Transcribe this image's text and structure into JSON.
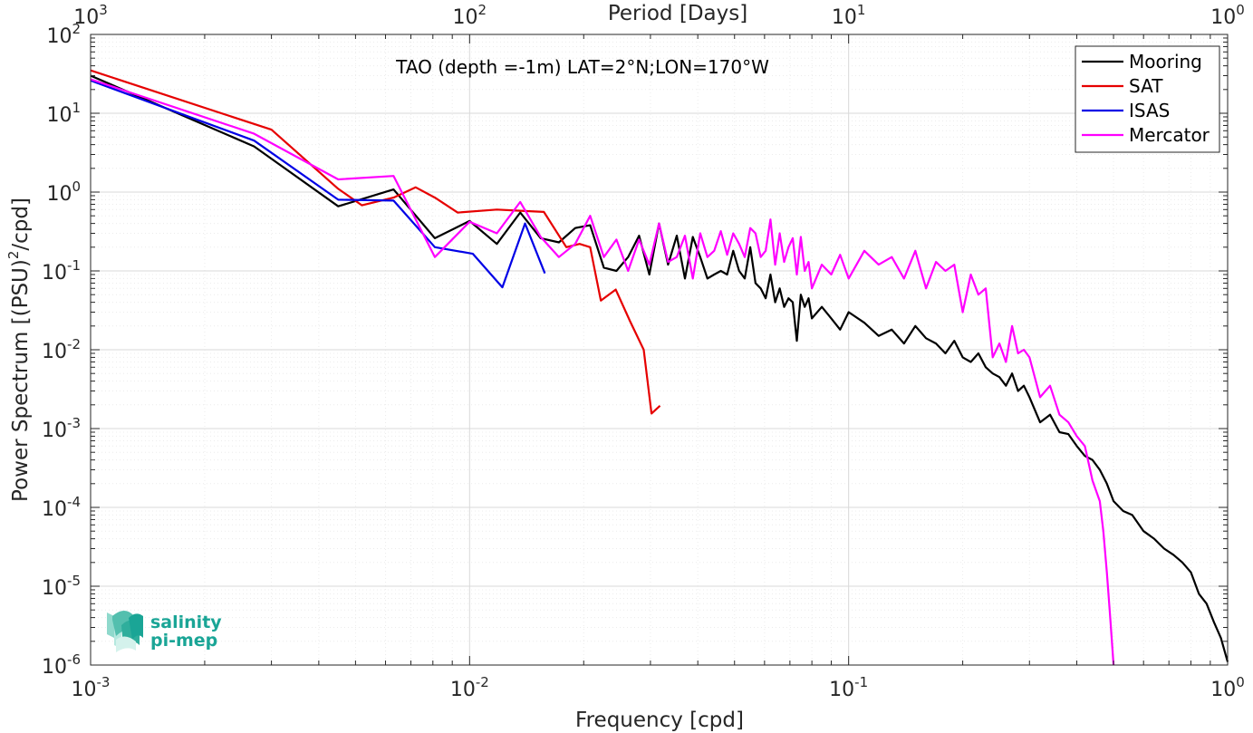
{
  "chart_data": {
    "type": "line",
    "title": "TAO (depth =-1m) LAT=2°N;LON=170°W",
    "xlabel": "Frequency [cpd]",
    "ylabel_parts": [
      "Power Spectrum [(PSU)",
      "2",
      "/cpd]"
    ],
    "top_xlabel": "Period [Days]",
    "x_scale": "log",
    "y_scale": "log",
    "xlim": [
      0.001,
      1
    ],
    "ylim": [
      1e-06,
      100
    ],
    "x_ticks": [
      {
        "value": 0.001,
        "base": "10",
        "exp": "-3"
      },
      {
        "value": 0.01,
        "base": "10",
        "exp": "-2"
      },
      {
        "value": 0.1,
        "base": "10",
        "exp": "-1"
      },
      {
        "value": 1,
        "base": "10",
        "exp": "0"
      }
    ],
    "top_ticks": [
      {
        "value": 0.001,
        "base": "10",
        "exp": "3"
      },
      {
        "value": 0.01,
        "base": "10",
        "exp": "2"
      },
      {
        "value": 0.1,
        "base": "10",
        "exp": "1"
      },
      {
        "value": 1,
        "base": "10",
        "exp": "0"
      }
    ],
    "y_ticks": [
      {
        "value": 100,
        "base": "10",
        "exp": "2"
      },
      {
        "value": 10,
        "base": "10",
        "exp": "1"
      },
      {
        "value": 1,
        "base": "10",
        "exp": "0"
      },
      {
        "value": 0.1,
        "base": "10",
        "exp": "-1"
      },
      {
        "value": 0.01,
        "base": "10",
        "exp": "-2"
      },
      {
        "value": 0.001,
        "base": "10",
        "exp": "-3"
      },
      {
        "value": 0.0001,
        "base": "10",
        "exp": "-4"
      },
      {
        "value": 1e-05,
        "base": "10",
        "exp": "-5"
      },
      {
        "value": 1e-06,
        "base": "10",
        "exp": "-6"
      }
    ],
    "grid": true,
    "minor_grid": true,
    "legend_position": "top-right",
    "series": [
      {
        "name": "Mooring",
        "color": "#000000",
        "x": [
          0.001,
          0.0027,
          0.0045,
          0.0063,
          0.0081,
          0.01,
          0.0118,
          0.0136,
          0.0154,
          0.0172,
          0.019,
          0.0208,
          0.0226,
          0.0244,
          0.0262,
          0.028,
          0.0298,
          0.0316,
          0.0334,
          0.0352,
          0.037,
          0.0388,
          0.0406,
          0.0424,
          0.0442,
          0.046,
          0.0478,
          0.0496,
          0.0514,
          0.0532,
          0.055,
          0.0568,
          0.0586,
          0.0604,
          0.0622,
          0.064,
          0.0658,
          0.0676,
          0.0694,
          0.0712,
          0.073,
          0.0748,
          0.0766,
          0.0784,
          0.08,
          0.085,
          0.09,
          0.095,
          0.1,
          0.11,
          0.12,
          0.13,
          0.14,
          0.15,
          0.16,
          0.17,
          0.18,
          0.19,
          0.2,
          0.21,
          0.22,
          0.23,
          0.24,
          0.25,
          0.26,
          0.27,
          0.28,
          0.29,
          0.3,
          0.32,
          0.34,
          0.36,
          0.38,
          0.4,
          0.42,
          0.44,
          0.46,
          0.48,
          0.5,
          0.53,
          0.56,
          0.6,
          0.64,
          0.68,
          0.72,
          0.76,
          0.8,
          0.84,
          0.88,
          0.92,
          0.96,
          1.0
        ],
        "y": [
          30,
          3.8,
          0.66,
          1.08,
          0.26,
          0.43,
          0.22,
          0.55,
          0.26,
          0.23,
          0.35,
          0.38,
          0.11,
          0.1,
          0.15,
          0.28,
          0.09,
          0.4,
          0.12,
          0.28,
          0.08,
          0.27,
          0.15,
          0.08,
          0.09,
          0.1,
          0.09,
          0.18,
          0.1,
          0.08,
          0.2,
          0.07,
          0.06,
          0.045,
          0.09,
          0.04,
          0.06,
          0.035,
          0.045,
          0.04,
          0.013,
          0.05,
          0.035,
          0.045,
          0.025,
          0.035,
          0.025,
          0.018,
          0.03,
          0.022,
          0.015,
          0.018,
          0.012,
          0.02,
          0.014,
          0.012,
          0.009,
          0.013,
          0.008,
          0.007,
          0.009,
          0.006,
          0.005,
          0.0045,
          0.0035,
          0.005,
          0.003,
          0.0035,
          0.0025,
          0.0012,
          0.0015,
          0.0009,
          0.00085,
          0.0006,
          0.00045,
          0.0004,
          0.0003,
          0.0002,
          0.00012,
          9e-05,
          8e-05,
          5e-05,
          4e-05,
          3e-05,
          2.5e-05,
          2e-05,
          1.5e-05,
          8e-06,
          6e-06,
          3.5e-06,
          2.2e-06,
          1.1e-06
        ]
      },
      {
        "name": "SAT",
        "color": "#e60000",
        "x": [
          0.001,
          0.003,
          0.0045,
          0.0052,
          0.0063,
          0.0072,
          0.0081,
          0.0093,
          0.0118,
          0.0136,
          0.0157,
          0.018,
          0.0195,
          0.0208,
          0.0222,
          0.0243,
          0.0265,
          0.0288,
          0.0302,
          0.0318
        ],
        "y": [
          35,
          6.2,
          1.1,
          0.68,
          0.85,
          1.15,
          0.85,
          0.55,
          0.6,
          0.58,
          0.56,
          0.2,
          0.22,
          0.2,
          0.042,
          0.058,
          0.023,
          0.01,
          0.00155,
          0.00195
        ]
      },
      {
        "name": "ISAS",
        "color": "#0000e6",
        "x": [
          0.001,
          0.0027,
          0.0045,
          0.0063,
          0.0081,
          0.0102,
          0.0122,
          0.014,
          0.0158
        ],
        "y": [
          26,
          4.5,
          0.8,
          0.78,
          0.2,
          0.165,
          0.062,
          0.4,
          0.093
        ]
      },
      {
        "name": "Mercator",
        "color": "#ff00ff",
        "x": [
          0.001,
          0.0027,
          0.0045,
          0.0063,
          0.0081,
          0.01,
          0.0118,
          0.0136,
          0.0154,
          0.0172,
          0.019,
          0.0208,
          0.0226,
          0.0244,
          0.0262,
          0.028,
          0.0298,
          0.0316,
          0.0334,
          0.0352,
          0.037,
          0.0388,
          0.0406,
          0.0424,
          0.0442,
          0.046,
          0.0478,
          0.0496,
          0.0514,
          0.0532,
          0.055,
          0.0568,
          0.0586,
          0.0604,
          0.0622,
          0.064,
          0.0658,
          0.0676,
          0.0694,
          0.0712,
          0.073,
          0.0748,
          0.0766,
          0.0784,
          0.08,
          0.085,
          0.09,
          0.095,
          0.1,
          0.11,
          0.12,
          0.13,
          0.14,
          0.15,
          0.16,
          0.17,
          0.18,
          0.19,
          0.2,
          0.21,
          0.22,
          0.23,
          0.24,
          0.25,
          0.26,
          0.27,
          0.28,
          0.29,
          0.3,
          0.32,
          0.34,
          0.36,
          0.38,
          0.4,
          0.42,
          0.44,
          0.46,
          0.47,
          0.48,
          0.49,
          0.5
        ],
        "y": [
          27,
          5.5,
          1.45,
          1.6,
          0.15,
          0.42,
          0.3,
          0.75,
          0.27,
          0.15,
          0.22,
          0.5,
          0.15,
          0.25,
          0.1,
          0.25,
          0.12,
          0.4,
          0.13,
          0.15,
          0.28,
          0.08,
          0.3,
          0.15,
          0.18,
          0.32,
          0.16,
          0.3,
          0.22,
          0.15,
          0.35,
          0.3,
          0.15,
          0.18,
          0.45,
          0.12,
          0.3,
          0.13,
          0.2,
          0.26,
          0.09,
          0.27,
          0.1,
          0.13,
          0.06,
          0.12,
          0.09,
          0.16,
          0.08,
          0.18,
          0.12,
          0.15,
          0.08,
          0.18,
          0.06,
          0.13,
          0.1,
          0.12,
          0.03,
          0.09,
          0.05,
          0.06,
          0.008,
          0.012,
          0.007,
          0.02,
          0.009,
          0.01,
          0.008,
          0.0025,
          0.0035,
          0.0015,
          0.0012,
          0.0008,
          0.0006,
          0.00022,
          0.00012,
          5e-05,
          1.5e-05,
          4e-06,
          8e-07
        ]
      }
    ]
  },
  "logo": {
    "line1": "salinity",
    "line2": "pi-mep"
  },
  "colors": {
    "axis": "#262626",
    "grid_major": "#d9d9d9",
    "grid_minor": "#ececec",
    "logo_teal": "#1aa596"
  }
}
